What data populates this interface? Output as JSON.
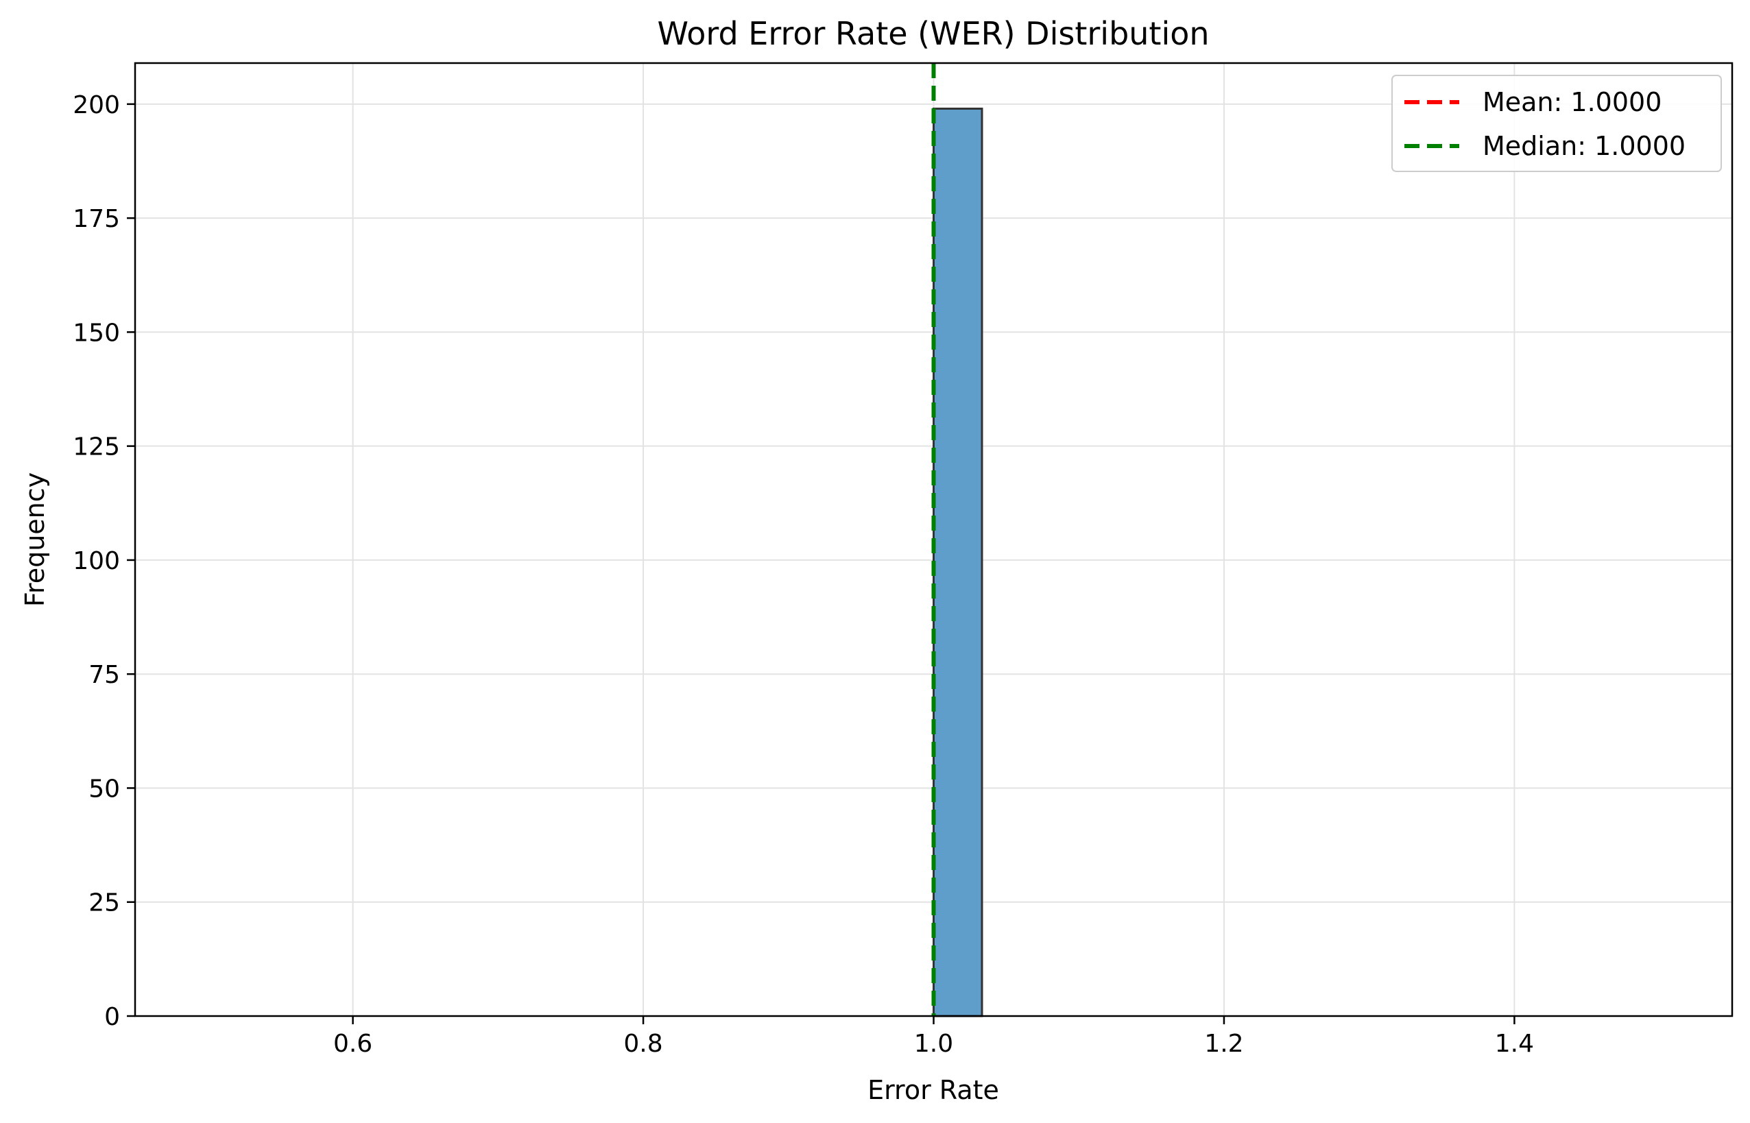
{
  "chart_data": {
    "type": "bar",
    "title": "Word Error Rate (WER) Distribution",
    "xlabel": "Error Rate",
    "ylabel": "Frequency",
    "xlim": [
      0.45,
      1.55
    ],
    "ylim": [
      0,
      209
    ],
    "xticks": [
      0.6,
      0.8,
      1.0,
      1.2,
      1.4
    ],
    "xtick_labels": [
      "0.6",
      "0.8",
      "1.0",
      "1.2",
      "1.4"
    ],
    "yticks": [
      0,
      25,
      50,
      75,
      100,
      125,
      150,
      175,
      200
    ],
    "ytick_labels": [
      "0",
      "25",
      "50",
      "75",
      "100",
      "125",
      "150",
      "175",
      "200"
    ],
    "grid": true,
    "bins": {
      "start": 0.5,
      "end": 1.5,
      "width": 0.0333,
      "nonzero": [
        {
          "x0": 1.0,
          "x1": 1.0333,
          "count": 199
        }
      ]
    },
    "bar_color": "#5f9ecb",
    "bar_edge_color": "#333333",
    "reference_lines": [
      {
        "label": "Mean: 1.0000",
        "x": 1.0,
        "color": "#ff0000",
        "style": "dashed"
      },
      {
        "label": "Median: 1.0000",
        "x": 1.0,
        "color": "#008000",
        "style": "dashed"
      }
    ],
    "legend": {
      "position": "top-right"
    }
  }
}
